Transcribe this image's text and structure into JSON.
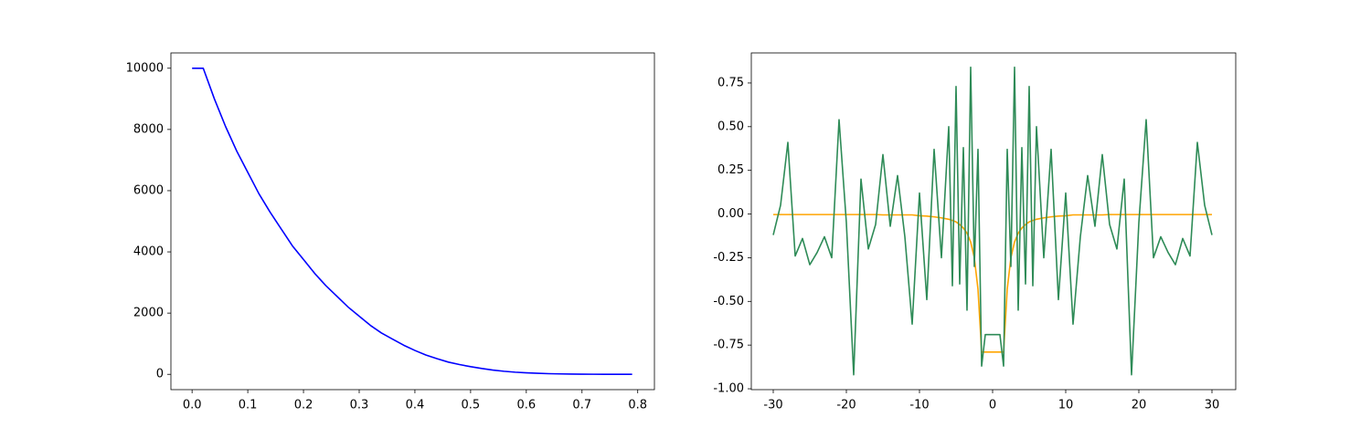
{
  "chart_data": [
    {
      "type": "line",
      "x": [
        0,
        0.02,
        0.04,
        0.06,
        0.08,
        0.1,
        0.12,
        0.14,
        0.16,
        0.18,
        0.2,
        0.22,
        0.24,
        0.26,
        0.28,
        0.3,
        0.32,
        0.34,
        0.36,
        0.38,
        0.4,
        0.42,
        0.44,
        0.46,
        0.48,
        0.5,
        0.52,
        0.54,
        0.56,
        0.58,
        0.6,
        0.62,
        0.64,
        0.66,
        0.68,
        0.7,
        0.72,
        0.74,
        0.76,
        0.78,
        0.79
      ],
      "series": [
        {
          "color": "#0000ff",
          "values": [
            10000,
            10000,
            9000,
            8100,
            7300,
            6600,
            5900,
            5300,
            4750,
            4200,
            3750,
            3300,
            2900,
            2550,
            2200,
            1900,
            1600,
            1350,
            1150,
            950,
            780,
            630,
            510,
            400,
            320,
            250,
            190,
            140,
            100,
            70,
            50,
            35,
            22,
            14,
            8,
            5,
            3,
            1,
            0,
            0,
            0
          ]
        }
      ],
      "xlim": [
        -0.038,
        0.83
      ],
      "ylim": [
        -500,
        10500
      ],
      "xticks": [
        {
          "value": 0,
          "label": "0.0"
        },
        {
          "value": 0.1,
          "label": "0.1"
        },
        {
          "value": 0.2,
          "label": "0.2"
        },
        {
          "value": 0.3,
          "label": "0.3"
        },
        {
          "value": 0.4,
          "label": "0.4"
        },
        {
          "value": 0.5,
          "label": "0.5"
        },
        {
          "value": 0.6,
          "label": "0.6"
        },
        {
          "value": 0.7,
          "label": "0.7"
        },
        {
          "value": 0.8,
          "label": "0.8"
        }
      ],
      "yticks": [
        0,
        2000,
        4000,
        6000,
        8000,
        10000
      ]
    },
    {
      "type": "line",
      "x": [
        -30,
        -29,
        -28,
        -27,
        -26,
        -25,
        -24,
        -23,
        -22,
        -21,
        -20,
        -19,
        -18,
        -17,
        -16,
        -15,
        -14,
        -13,
        -12,
        -11,
        -10,
        -9,
        -8,
        -7,
        -6,
        -5.5,
        -5,
        -4.5,
        -4,
        -3.5,
        -3,
        -2.5,
        -2,
        -1.5,
        -1,
        -0.5,
        0,
        0.5,
        1,
        1.5,
        2,
        2.5,
        3,
        3.5,
        4,
        4.5,
        5,
        5.5,
        6,
        7,
        8,
        9,
        10,
        11,
        12,
        13,
        14,
        15,
        16,
        17,
        18,
        19,
        20,
        21,
        22,
        23,
        24,
        25,
        26,
        27,
        28,
        29,
        30
      ],
      "series": [
        {
          "color": "#ffa500",
          "values": [
            -0.003,
            -0.003,
            -0.003,
            -0.003,
            -0.003,
            -0.003,
            -0.003,
            -0.003,
            -0.003,
            -0.003,
            -0.003,
            -0.003,
            -0.003,
            -0.003,
            -0.003,
            -0.005,
            -0.005,
            -0.005,
            -0.005,
            -0.005,
            -0.01,
            -0.012,
            -0.016,
            -0.022,
            -0.03,
            -0.037,
            -0.045,
            -0.06,
            -0.08,
            -0.11,
            -0.16,
            -0.25,
            -0.43,
            -0.79,
            -0.79,
            -0.79,
            -0.79,
            -0.79,
            -0.79,
            -0.79,
            -0.43,
            -0.25,
            -0.16,
            -0.11,
            -0.08,
            -0.06,
            -0.045,
            -0.037,
            -0.03,
            -0.022,
            -0.016,
            -0.012,
            -0.01,
            -0.005,
            -0.005,
            -0.005,
            -0.005,
            -0.005,
            -0.003,
            -0.003,
            -0.003,
            -0.003,
            -0.003,
            -0.003,
            -0.003,
            -0.003,
            -0.003,
            -0.003,
            -0.003,
            -0.003,
            -0.003,
            -0.003,
            -0.003
          ]
        },
        {
          "color": "#2e8b57",
          "values": [
            -0.12,
            0.05,
            0.41,
            -0.24,
            -0.14,
            -0.29,
            -0.22,
            -0.13,
            -0.25,
            0.54,
            -0.05,
            -0.92,
            0.2,
            -0.2,
            -0.06,
            0.34,
            -0.07,
            0.22,
            -0.13,
            -0.63,
            0.12,
            -0.49,
            0.37,
            -0.25,
            0.5,
            -0.41,
            0.73,
            -0.4,
            0.38,
            -0.55,
            0.84,
            -0.3,
            0.37,
            -0.87,
            -0.69,
            -0.69,
            -0.69,
            -0.69,
            -0.69,
            -0.87,
            0.37,
            -0.3,
            0.84,
            -0.55,
            0.38,
            -0.4,
            0.73,
            -0.41,
            0.5,
            -0.25,
            0.37,
            -0.49,
            0.12,
            -0.63,
            -0.13,
            0.22,
            -0.07,
            0.34,
            -0.06,
            -0.2,
            0.2,
            -0.92,
            -0.05,
            0.54,
            -0.25,
            -0.13,
            -0.22,
            -0.29,
            -0.14,
            -0.24,
            0.41,
            0.05,
            -0.12
          ]
        }
      ],
      "xlim": [
        -33,
        33.25
      ],
      "ylim": [
        -1.005,
        0.922
      ],
      "xticks": [
        -30,
        -20,
        -10,
        0,
        10,
        20,
        30
      ],
      "yticks": [
        {
          "value": -1,
          "label": "-1.00"
        },
        -0.75,
        {
          "value": -0.5,
          "label": "-0.50"
        },
        -0.25,
        {
          "value": 0,
          "label": "0.00"
        },
        0.25,
        {
          "value": 0.5,
          "label": "0.50"
        },
        0.75
      ]
    }
  ]
}
